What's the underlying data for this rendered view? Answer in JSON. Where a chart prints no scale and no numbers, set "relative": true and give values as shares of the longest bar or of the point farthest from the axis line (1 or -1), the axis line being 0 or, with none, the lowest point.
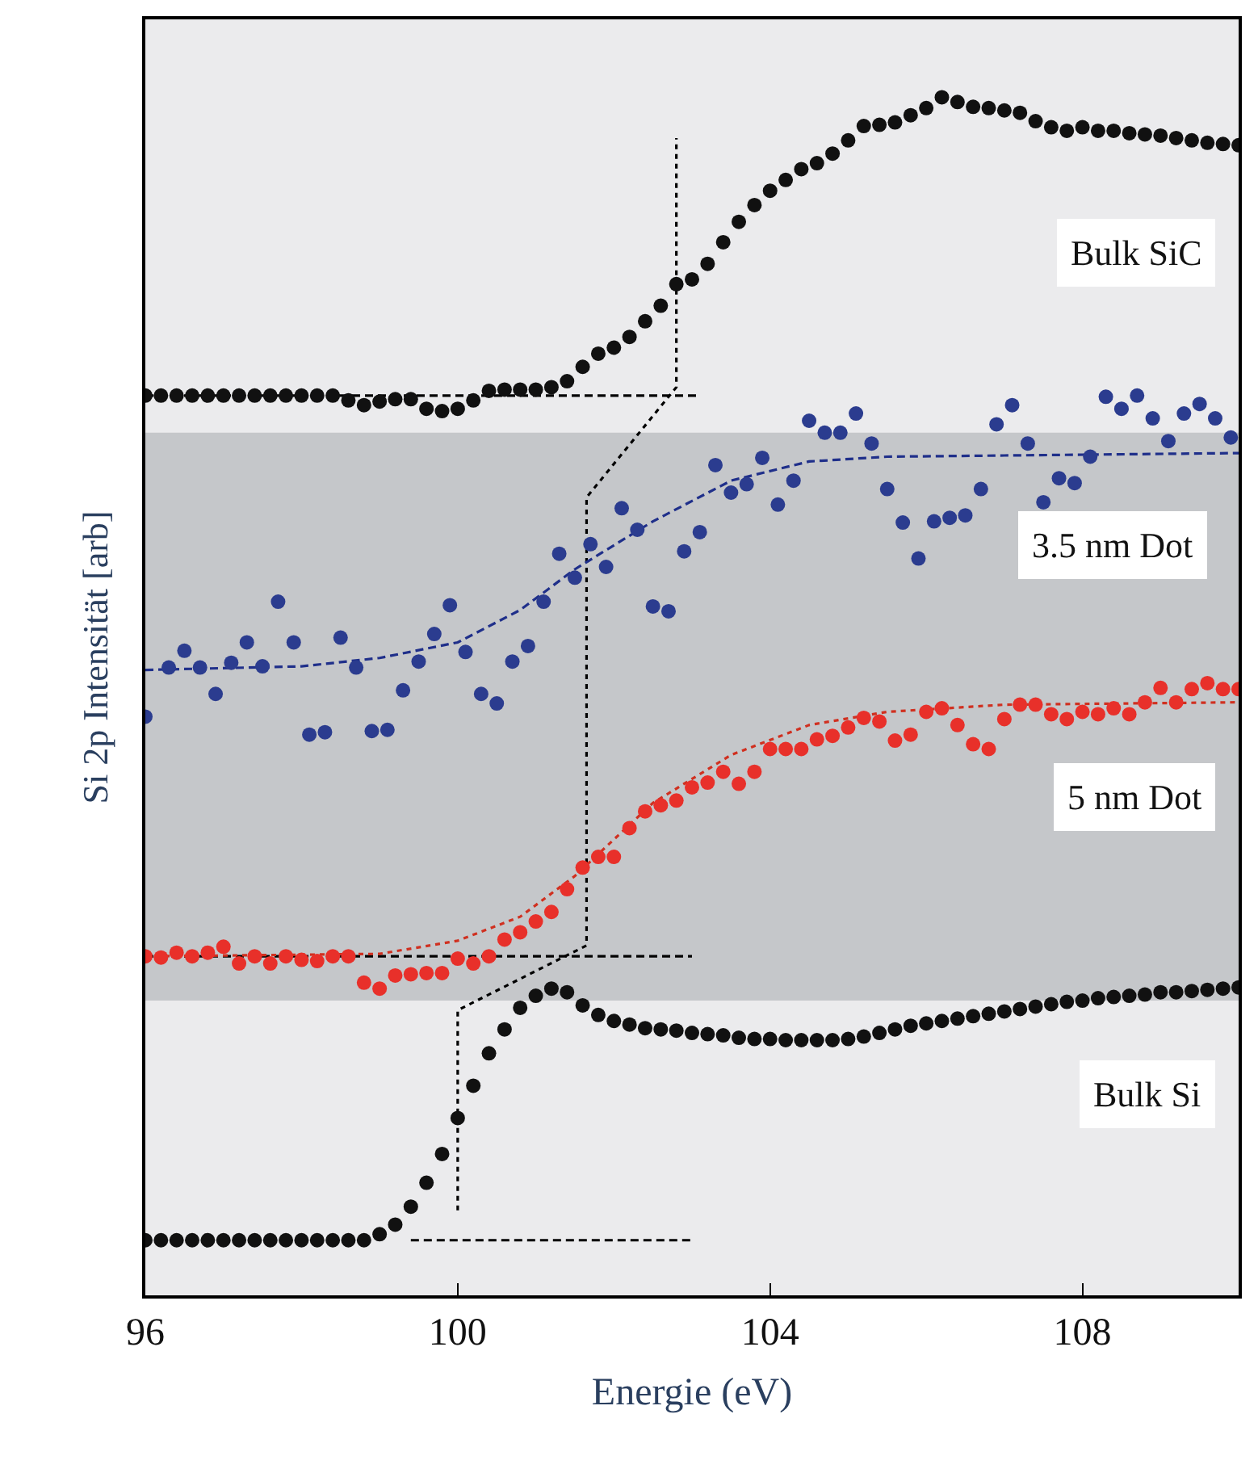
{
  "chart_data": {
    "type": "scatter",
    "relative": true,
    "xlabel": "Energie (eV)",
    "ylabel": "Si 2p Intensität [arb]",
    "xlim": [
      96,
      110
    ],
    "xticks": [
      96,
      100,
      104,
      108
    ],
    "tick_labels": "x",
    "grid": false,
    "legend": false,
    "bands": [
      {
        "axis": "y",
        "from": 0.246,
        "to": 0.72,
        "color": "#c5c7ca"
      }
    ],
    "series": [
      {
        "type": "line",
        "color": "#000000",
        "line_style": "dotted",
        "marker": "none",
        "x": [
          100,
          100,
          101.65,
          101.65,
          102.8,
          102.8
        ],
        "values": [
          0.071,
          0.238,
          0.292,
          0.666,
          0.758,
          0.966
        ]
      },
      {
        "type": "line",
        "color": "#000000",
        "line_style": "dashed",
        "marker": "none",
        "x": [
          96,
          103.1
        ],
        "values": [
          0.751,
          0.751
        ]
      },
      {
        "type": "line",
        "color": "#000000",
        "line_style": "dashed",
        "marker": "none",
        "x": [
          96,
          103
        ],
        "values": [
          0.283,
          0.283
        ]
      },
      {
        "type": "line",
        "color": "#000000",
        "line_style": "dashed",
        "marker": "none",
        "x": [
          99.4,
          103
        ],
        "values": [
          0.046,
          0.046
        ]
      },
      {
        "type": "line",
        "color": "#1f2f8a",
        "line_style": "dashed",
        "marker": "none",
        "x": [
          96,
          98,
          99,
          100,
          100.8,
          101.5,
          102.5,
          103.5,
          104.5,
          105.5,
          107,
          110
        ],
        "values": [
          0.522,
          0.525,
          0.532,
          0.545,
          0.572,
          0.606,
          0.646,
          0.68,
          0.696,
          0.7,
          0.701,
          0.703
        ]
      },
      {
        "type": "line",
        "color": "#d03020",
        "line_style": "dotted",
        "marker": "none",
        "x": [
          96,
          99,
          100,
          100.8,
          101.5,
          102.5,
          103.5,
          104.5,
          105.5,
          107,
          110
        ],
        "values": [
          0.283,
          0.285,
          0.296,
          0.316,
          0.35,
          0.411,
          0.451,
          0.476,
          0.487,
          0.493,
          0.495
        ]
      },
      {
        "name": "Bulk SiC",
        "marker": "circle",
        "color": "#111111",
        "x": [
          96,
          96.2,
          96.4,
          96.6,
          96.8,
          97,
          97.2,
          97.4,
          97.6,
          97.8,
          98,
          98.2,
          98.4,
          98.6,
          98.8,
          99,
          99.2,
          99.4,
          99.6,
          99.8,
          100,
          100.2,
          100.4,
          100.6,
          100.8,
          101,
          101.2,
          101.4,
          101.6,
          101.8,
          102,
          102.2,
          102.4,
          102.6,
          102.8,
          103,
          103.2,
          103.4,
          103.6,
          103.8,
          104,
          104.2,
          104.4,
          104.6,
          104.8,
          105,
          105.2,
          105.4,
          105.6,
          105.8,
          106,
          106.2,
          106.4,
          106.6,
          106.8,
          107,
          107.2,
          107.4,
          107.6,
          107.8,
          108,
          108.2,
          108.4,
          108.6,
          108.8,
          109,
          109.2,
          109.4,
          109.6,
          109.8,
          110
        ],
        "values": [
          0.751,
          0.751,
          0.751,
          0.751,
          0.751,
          0.751,
          0.751,
          0.751,
          0.751,
          0.751,
          0.751,
          0.751,
          0.751,
          0.747,
          0.743,
          0.746,
          0.748,
          0.748,
          0.74,
          0.738,
          0.74,
          0.747,
          0.755,
          0.756,
          0.756,
          0.756,
          0.758,
          0.763,
          0.775,
          0.786,
          0.791,
          0.8,
          0.813,
          0.826,
          0.844,
          0.848,
          0.861,
          0.879,
          0.896,
          0.91,
          0.922,
          0.931,
          0.94,
          0.945,
          0.953,
          0.964,
          0.976,
          0.977,
          0.979,
          0.985,
          0.991,
          1.0,
          0.996,
          0.992,
          0.991,
          0.989,
          0.987,
          0.98,
          0.975,
          0.972,
          0.975,
          0.972,
          0.972,
          0.97,
          0.969,
          0.968,
          0.966,
          0.964,
          0.962,
          0.961,
          0.96
        ]
      },
      {
        "name": "Bulk Si",
        "marker": "circle",
        "color": "#111111",
        "x": [
          96,
          96.2,
          96.4,
          96.6,
          96.8,
          97,
          97.2,
          97.4,
          97.6,
          97.8,
          98,
          98.2,
          98.4,
          98.6,
          98.8,
          99,
          99.2,
          99.4,
          99.6,
          99.8,
          100,
          100.2,
          100.4,
          100.6,
          100.8,
          101,
          101.2,
          101.4,
          101.6,
          101.8,
          102,
          102.2,
          102.4,
          102.6,
          102.8,
          103,
          103.2,
          103.4,
          103.6,
          103.8,
          104,
          104.2,
          104.4,
          104.6,
          104.8,
          105,
          105.2,
          105.4,
          105.6,
          105.8,
          106,
          106.2,
          106.4,
          106.6,
          106.8,
          107,
          107.2,
          107.4,
          107.6,
          107.8,
          108,
          108.2,
          108.4,
          108.6,
          108.8,
          109,
          109.2,
          109.4,
          109.6,
          109.8,
          110
        ],
        "values": [
          0.046,
          0.046,
          0.046,
          0.046,
          0.046,
          0.046,
          0.046,
          0.046,
          0.046,
          0.046,
          0.046,
          0.046,
          0.046,
          0.046,
          0.046,
          0.051,
          0.059,
          0.074,
          0.094,
          0.118,
          0.148,
          0.175,
          0.202,
          0.222,
          0.24,
          0.25,
          0.256,
          0.253,
          0.242,
          0.234,
          0.229,
          0.226,
          0.223,
          0.222,
          0.221,
          0.219,
          0.218,
          0.217,
          0.215,
          0.214,
          0.214,
          0.213,
          0.213,
          0.213,
          0.213,
          0.214,
          0.216,
          0.219,
          0.222,
          0.225,
          0.227,
          0.229,
          0.231,
          0.233,
          0.235,
          0.237,
          0.239,
          0.241,
          0.243,
          0.245,
          0.246,
          0.248,
          0.249,
          0.25,
          0.251,
          0.253,
          0.253,
          0.254,
          0.255,
          0.256,
          0.257
        ]
      },
      {
        "name": "3.5 nm Dot",
        "marker": "circle",
        "color": "#2b3c8f",
        "x": [
          96,
          96.3,
          96.5,
          96.7,
          96.9,
          97.1,
          97.3,
          97.5,
          97.7,
          97.9,
          98.1,
          98.3,
          98.5,
          98.7,
          98.9,
          99.1,
          99.3,
          99.5,
          99.7,
          99.9,
          100.1,
          100.3,
          100.5,
          100.7,
          100.9,
          101.1,
          101.3,
          101.5,
          101.7,
          101.9,
          102.1,
          102.3,
          102.5,
          102.7,
          102.9,
          103.1,
          103.3,
          103.5,
          103.7,
          103.9,
          104.1,
          104.3,
          104.5,
          104.7,
          104.9,
          105.1,
          105.3,
          105.5,
          105.7,
          105.9,
          106.1,
          106.3,
          106.5,
          106.7,
          106.9,
          107.1,
          107.3,
          107.5,
          107.7,
          107.9,
          108.1,
          108.3,
          108.5,
          108.7,
          108.9,
          109.1,
          109.3,
          109.5,
          109.7,
          109.9
        ],
        "values": [
          0.483,
          0.524,
          0.538,
          0.524,
          0.502,
          0.528,
          0.545,
          0.525,
          0.579,
          0.545,
          0.468,
          0.47,
          0.549,
          0.524,
          0.471,
          0.472,
          0.505,
          0.529,
          0.552,
          0.576,
          0.537,
          0.502,
          0.494,
          0.529,
          0.542,
          0.579,
          0.619,
          0.599,
          0.627,
          0.608,
          0.657,
          0.639,
          0.575,
          0.571,
          0.621,
          0.637,
          0.693,
          0.67,
          0.677,
          0.699,
          0.66,
          0.68,
          0.73,
          0.72,
          0.72,
          0.736,
          0.711,
          0.673,
          0.645,
          0.615,
          0.646,
          0.649,
          0.651,
          0.673,
          0.727,
          0.743,
          0.711,
          0.662,
          0.682,
          0.678,
          0.7,
          0.75,
          0.74,
          0.751,
          0.732,
          0.713,
          0.736,
          0.744,
          0.732,
          0.716
        ]
      },
      {
        "name": "5 nm Dot",
        "marker": "circle",
        "color": "#e8302a",
        "x": [
          96,
          96.2,
          96.4,
          96.6,
          96.8,
          97,
          97.2,
          97.4,
          97.6,
          97.8,
          98,
          98.2,
          98.4,
          98.6,
          98.8,
          99,
          99.2,
          99.4,
          99.6,
          99.8,
          100,
          100.2,
          100.4,
          100.6,
          100.8,
          101,
          101.2,
          101.4,
          101.6,
          101.8,
          102,
          102.2,
          102.4,
          102.6,
          102.8,
          103,
          103.2,
          103.4,
          103.6,
          103.8,
          104,
          104.2,
          104.4,
          104.6,
          104.8,
          105,
          105.2,
          105.4,
          105.6,
          105.8,
          106,
          106.2,
          106.4,
          106.6,
          106.8,
          107,
          107.2,
          107.4,
          107.6,
          107.8,
          108,
          108.2,
          108.4,
          108.6,
          108.8,
          109,
          109.2,
          109.4,
          109.6,
          109.8,
          110
        ],
        "values": [
          0.283,
          0.282,
          0.286,
          0.283,
          0.286,
          0.291,
          0.277,
          0.283,
          0.277,
          0.283,
          0.28,
          0.279,
          0.283,
          0.283,
          0.261,
          0.256,
          0.267,
          0.268,
          0.269,
          0.269,
          0.281,
          0.277,
          0.283,
          0.297,
          0.303,
          0.312,
          0.32,
          0.339,
          0.357,
          0.366,
          0.366,
          0.39,
          0.404,
          0.409,
          0.413,
          0.424,
          0.428,
          0.437,
          0.427,
          0.437,
          0.456,
          0.456,
          0.456,
          0.464,
          0.467,
          0.474,
          0.482,
          0.479,
          0.463,
          0.468,
          0.487,
          0.49,
          0.476,
          0.46,
          0.456,
          0.481,
          0.493,
          0.493,
          0.485,
          0.481,
          0.487,
          0.485,
          0.49,
          0.485,
          0.495,
          0.507,
          0.495,
          0.506,
          0.511,
          0.506,
          0.506
        ]
      }
    ]
  }
}
